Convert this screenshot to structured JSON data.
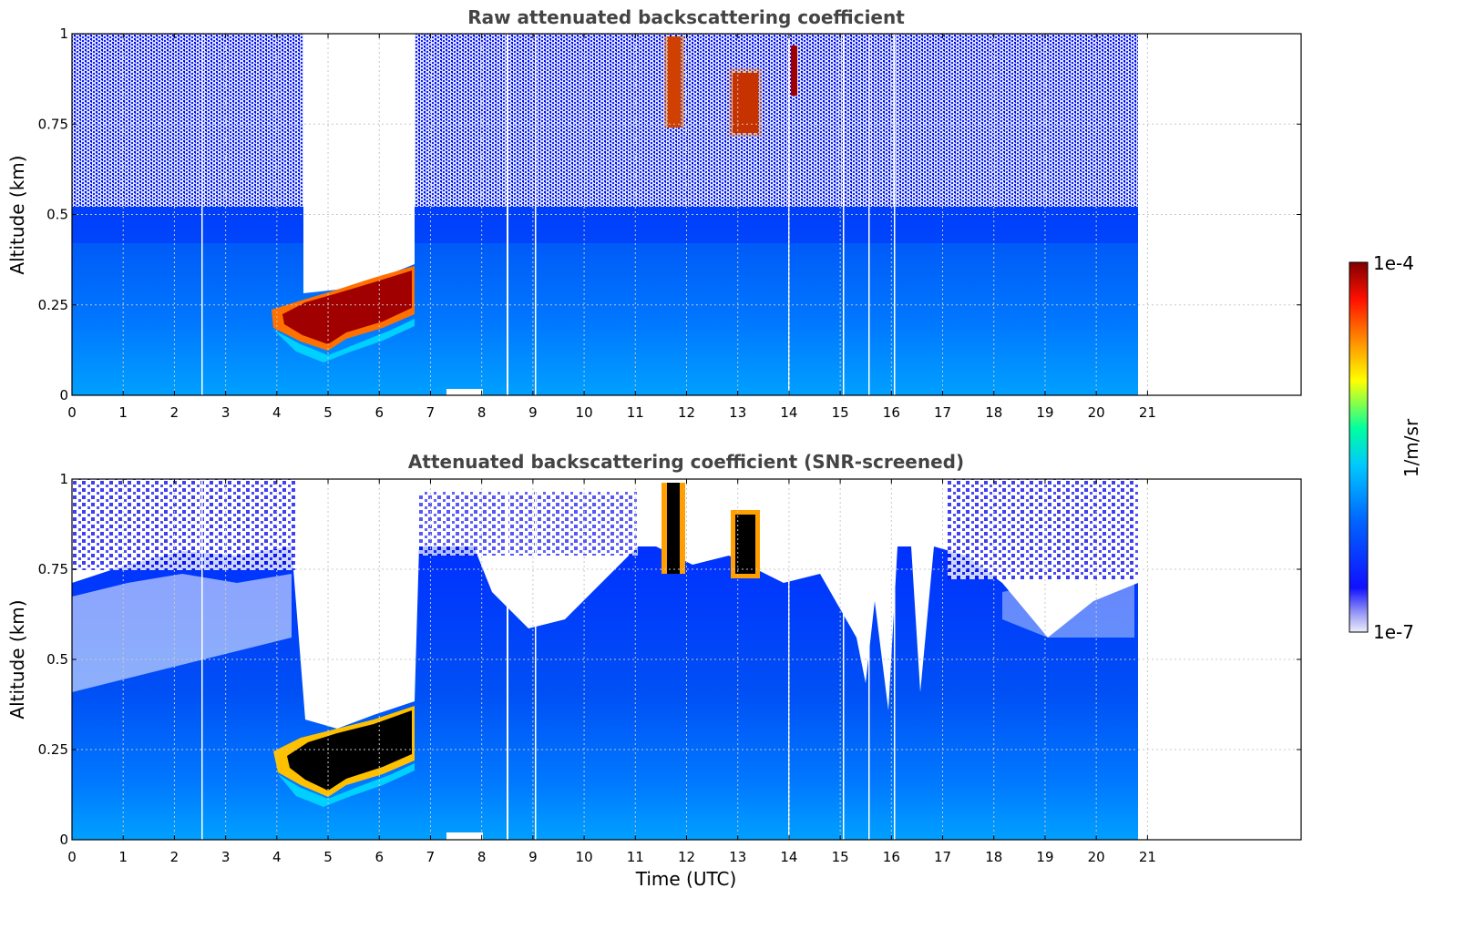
{
  "chart_data": [
    {
      "type": "heatmap",
      "title": "Raw attenuated backscattering coefficient",
      "xlabel": "",
      "ylabel": "Altitude (km)",
      "xlim": [
        0,
        24
      ],
      "ylim": [
        0,
        1
      ],
      "x_ticks": [
        "0",
        "1",
        "2",
        "3",
        "4",
        "5",
        "6",
        "7",
        "8",
        "9",
        "10",
        "11",
        "12",
        "13",
        "14",
        "15",
        "16",
        "17",
        "18",
        "19",
        "20",
        "21"
      ],
      "y_ticks": [
        "0",
        "0.25",
        "0.5",
        "0.75",
        "1"
      ],
      "grid": true,
      "data_end_time": 20.8,
      "features": [
        {
          "label": "dense boundary layer / cloud base",
          "time_range": [
            4.3,
            6.7
          ],
          "altitude_range": [
            0.13,
            0.32
          ],
          "value": "1e-4"
        },
        {
          "label": "noise-free gap above layer",
          "time_range": [
            4.5,
            6.7
          ],
          "altitude_range": [
            0.32,
            1.0
          ],
          "value": "none"
        },
        {
          "label": "high cloud",
          "time_range": [
            11.6,
            11.9
          ],
          "altitude_range": [
            0.75,
            1.0
          ],
          "value": "1e-4"
        },
        {
          "label": "high cloud",
          "time_range": [
            12.9,
            13.4
          ],
          "altitude_range": [
            0.73,
            0.85
          ],
          "value": "1e-4"
        },
        {
          "label": "high cloud",
          "time_range": [
            14.05,
            14.2
          ],
          "altitude_range": [
            0.8,
            0.95
          ],
          "value": "1e-4"
        }
      ]
    },
    {
      "type": "heatmap",
      "title": "Attenuated backscattering coefficient (SNR-screened)",
      "xlabel": "Time (UTC)",
      "ylabel": "Altitude (km)",
      "xlim": [
        0,
        24
      ],
      "ylim": [
        0,
        1
      ],
      "x_ticks": [
        "0",
        "1",
        "2",
        "3",
        "4",
        "5",
        "6",
        "7",
        "8",
        "9",
        "10",
        "11",
        "12",
        "13",
        "14",
        "15",
        "16",
        "17",
        "18",
        "19",
        "20",
        "21"
      ],
      "y_ticks": [
        "0",
        "0.25",
        "0.5",
        "0.75",
        "1"
      ],
      "grid": true,
      "data_end_time": 20.8,
      "features": [
        {
          "label": "saturated layer",
          "time_range": [
            4.4,
            6.7
          ],
          "altitude_range": [
            0.12,
            0.3
          ],
          "value": "saturated"
        },
        {
          "label": "screened gap",
          "time_range": [
            4.5,
            6.7
          ],
          "altitude_range": [
            0.3,
            1.0
          ],
          "value": "none"
        },
        {
          "label": "saturated cloud",
          "time_range": [
            11.6,
            11.9
          ],
          "altitude_range": [
            0.75,
            1.0
          ],
          "value": "saturated"
        },
        {
          "label": "saturated cloud",
          "time_range": [
            12.9,
            13.4
          ],
          "altitude_range": [
            0.78,
            0.86
          ],
          "value": "saturated"
        }
      ]
    }
  ],
  "colorbar": {
    "max_label": "1e-4",
    "min_label": "1e-7",
    "unit_label": "1/m/sr",
    "scale": "log",
    "colors": [
      "#e6e6f5",
      "#1414ff",
      "#0064ff",
      "#00c8ff",
      "#00ff80",
      "#ffff00",
      "#ff8000",
      "#ff0000",
      "#800000"
    ]
  }
}
